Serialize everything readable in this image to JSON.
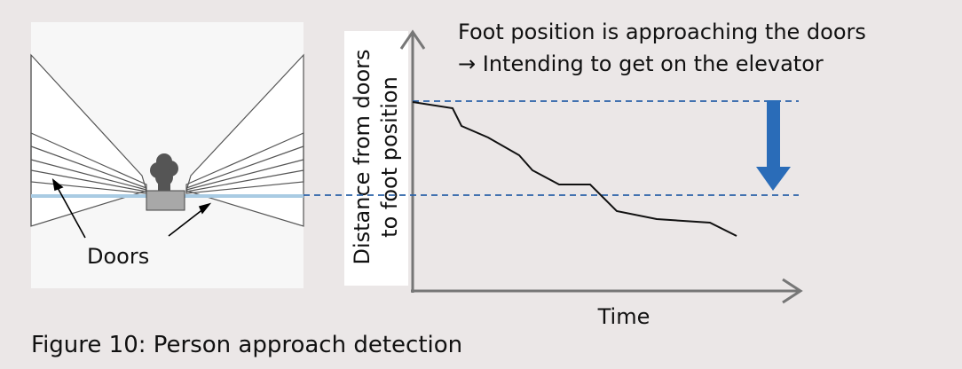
{
  "annotation": {
    "line1": "Foot position is approaching the doors",
    "line2": "→ Intending to get on the elevator"
  },
  "axes": {
    "y_label": [
      "Distance from doors",
      "to foot position"
    ],
    "x_label": "Time"
  },
  "image": {
    "label": "Doors"
  },
  "caption": "Figure 10: Person approach detection"
}
